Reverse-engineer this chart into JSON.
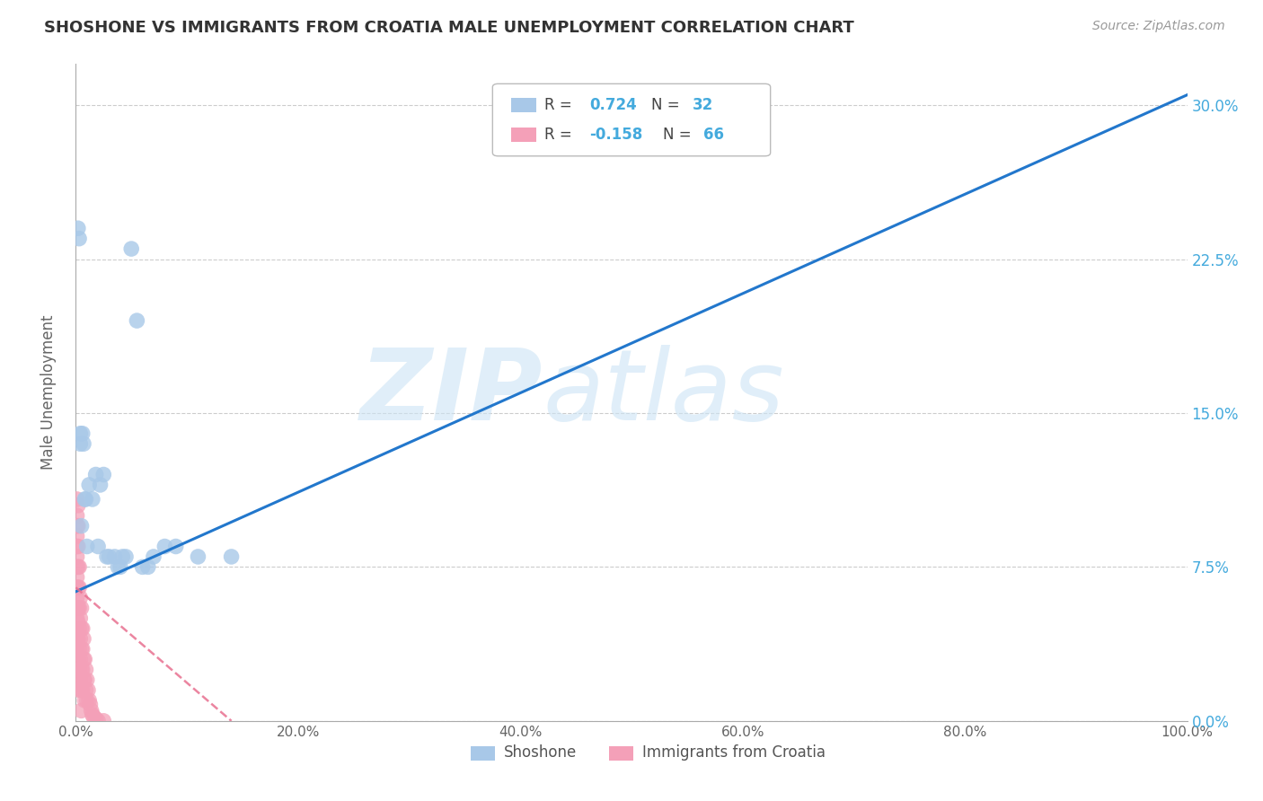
{
  "title": "SHOSHONE VS IMMIGRANTS FROM CROATIA MALE UNEMPLOYMENT CORRELATION CHART",
  "source": "Source: ZipAtlas.com",
  "ylabel": "Male Unemployment",
  "shoshone_R": 0.724,
  "shoshone_N": 32,
  "croatia_R": -0.158,
  "croatia_N": 66,
  "shoshone_color": "#a8c8e8",
  "croatia_color": "#f4a0b8",
  "shoshone_line_color": "#2277cc",
  "croatia_line_color": "#e87090",
  "xlim": [
    0.0,
    1.0
  ],
  "ylim": [
    0.0,
    0.32
  ],
  "figsize": [
    14.06,
    8.92
  ],
  "dpi": 100,
  "shoshone_x": [
    0.002,
    0.003,
    0.004,
    0.004,
    0.005,
    0.006,
    0.007,
    0.008,
    0.009,
    0.01,
    0.012,
    0.015,
    0.018,
    0.02,
    0.022,
    0.025,
    0.028,
    0.03,
    0.035,
    0.038,
    0.04,
    0.042,
    0.045,
    0.05,
    0.055,
    0.06,
    0.065,
    0.07,
    0.08,
    0.09,
    0.11,
    0.14
  ],
  "shoshone_y": [
    0.24,
    0.235,
    0.14,
    0.135,
    0.095,
    0.14,
    0.135,
    0.108,
    0.108,
    0.085,
    0.115,
    0.108,
    0.12,
    0.085,
    0.115,
    0.12,
    0.08,
    0.08,
    0.08,
    0.075,
    0.075,
    0.08,
    0.08,
    0.23,
    0.195,
    0.075,
    0.075,
    0.08,
    0.085,
    0.085,
    0.08,
    0.08
  ],
  "croatia_x": [
    0.001,
    0.001,
    0.001,
    0.001,
    0.001,
    0.001,
    0.001,
    0.001,
    0.001,
    0.001,
    0.001,
    0.001,
    0.001,
    0.001,
    0.001,
    0.002,
    0.002,
    0.002,
    0.002,
    0.002,
    0.002,
    0.002,
    0.002,
    0.002,
    0.002,
    0.003,
    0.003,
    0.003,
    0.003,
    0.003,
    0.003,
    0.003,
    0.004,
    0.004,
    0.004,
    0.004,
    0.004,
    0.005,
    0.005,
    0.005,
    0.005,
    0.005,
    0.005,
    0.006,
    0.006,
    0.006,
    0.006,
    0.007,
    0.007,
    0.007,
    0.008,
    0.008,
    0.008,
    0.009,
    0.009,
    0.01,
    0.01,
    0.011,
    0.012,
    0.013,
    0.014,
    0.015,
    0.016,
    0.018,
    0.02,
    0.025
  ],
  "croatia_y": [
    0.108,
    0.1,
    0.095,
    0.09,
    0.085,
    0.08,
    0.075,
    0.07,
    0.065,
    0.06,
    0.055,
    0.05,
    0.045,
    0.04,
    0.035,
    0.105,
    0.095,
    0.085,
    0.075,
    0.065,
    0.055,
    0.048,
    0.04,
    0.03,
    0.02,
    0.075,
    0.065,
    0.055,
    0.045,
    0.035,
    0.025,
    0.015,
    0.06,
    0.05,
    0.04,
    0.03,
    0.02,
    0.055,
    0.045,
    0.035,
    0.025,
    0.015,
    0.005,
    0.045,
    0.035,
    0.025,
    0.015,
    0.04,
    0.03,
    0.02,
    0.03,
    0.02,
    0.01,
    0.025,
    0.015,
    0.02,
    0.01,
    0.015,
    0.01,
    0.008,
    0.005,
    0.003,
    0.002,
    0.001,
    0.0,
    0.0
  ],
  "shoshone_line_x0": 0.0,
  "shoshone_line_y0": 0.063,
  "shoshone_line_x1": 1.0,
  "shoshone_line_y1": 0.305,
  "croatia_line_x0": 0.0,
  "croatia_line_y0": 0.065,
  "croatia_line_x1": 0.14,
  "croatia_line_y1": 0.0
}
